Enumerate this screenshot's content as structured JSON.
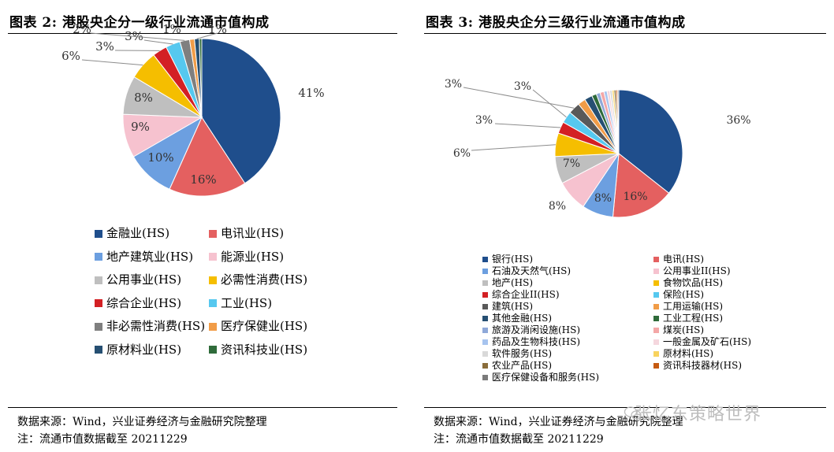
{
  "watermark": "张忆东策略世界",
  "panels": [
    {
      "title": "图表 2:  港股央企分一级行业流通市值构成",
      "source": "数据来源：Wind，兴业证券经济与金融研究院整理",
      "note": "注：流通市值数据截至 20211229",
      "chart_data": {
        "type": "pie",
        "title": "港股央企分一级行业流通市值构成",
        "unit": "%",
        "labels": [
          "金融业(HS)",
          "电讯业(HS)",
          "地产建筑业(HS)",
          "能源业(HS)",
          "公用事业(HS)",
          "必需性消费(HS)",
          "综合企业(HS)",
          "工业(HS)",
          "非必需性消费(HS)",
          "医疗保健业(HS)",
          "原材料业(HS)",
          "资讯科技业(HS)"
        ],
        "values": [
          41,
          16,
          10,
          9,
          8,
          6,
          3,
          3,
          2,
          1,
          1,
          0.5
        ],
        "data_labels": [
          "41%",
          "16%",
          "10%",
          "9%",
          "8%",
          "6%",
          "3%",
          "3%",
          "2%",
          "1%",
          "1%",
          ""
        ],
        "colors": [
          "#1f4e8c",
          "#e46060",
          "#6c9fe0",
          "#f6c2cf",
          "#bfbfbf",
          "#f5be00",
          "#d32024",
          "#56c8ef",
          "#7f7f7f",
          "#f19c47",
          "#264f72",
          "#2f6b3a"
        ],
        "legend_columns": 2,
        "legend_position": "bottom"
      }
    },
    {
      "title": "图表 3:  港股央企分三级行业流通市值构成",
      "source": "数据来源：Wind，兴业证券经济与金融研究院整理",
      "note": "注：流通市值数据截至 20211229",
      "chart_data": {
        "type": "pie",
        "title": "港股央企分三级行业流通市值构成",
        "unit": "%",
        "labels": [
          "银行(HS)",
          "电讯(HS)",
          "石油及天然气(HS)",
          "公用事业II(HS)",
          "地产(HS)",
          "食物饮品(HS)",
          "综合企业II(HS)",
          "保险(HS)",
          "建筑(HS)",
          "工用运输(HS)",
          "其他金融(HS)",
          "工业工程(HS)",
          "旅游及消闲设施(HS)",
          "煤炭(HS)",
          "药品及生物科技(HS)",
          "一般金属及矿石(HS)",
          "软件服务(HS)",
          "原材料(HS)",
          "农业产品(HS)",
          "资讯科技器材(HS)",
          "医疗保健设备和服务(HS)"
        ],
        "values": [
          36,
          16,
          8,
          8,
          7,
          6,
          3,
          3,
          3,
          2,
          2,
          1.2,
          1,
          1,
          0.8,
          0.7,
          0.6,
          0.5,
          0.5,
          0.4,
          0.3
        ],
        "data_labels": [
          "36%",
          "16%",
          "8%",
          "8%",
          "7%",
          "6%",
          "3%",
          "3%",
          "3%",
          "",
          "",
          "",
          "",
          "",
          "",
          "",
          "",
          "",
          "",
          "",
          ""
        ],
        "colors": [
          "#1f4e8c",
          "#e46060",
          "#6c9fe0",
          "#f6c2cf",
          "#bfbfbf",
          "#f5be00",
          "#d32024",
          "#56c8ef",
          "#595959",
          "#f19c47",
          "#264f72",
          "#2f6b3a",
          "#8fa9d9",
          "#f4a7a7",
          "#a7c4ef",
          "#f5d7de",
          "#d9d9d9",
          "#f8d35e",
          "#8a6d3b",
          "#c55a11",
          "#7b7b7b"
        ],
        "legend_columns": 2,
        "legend_position": "bottom"
      }
    }
  ]
}
